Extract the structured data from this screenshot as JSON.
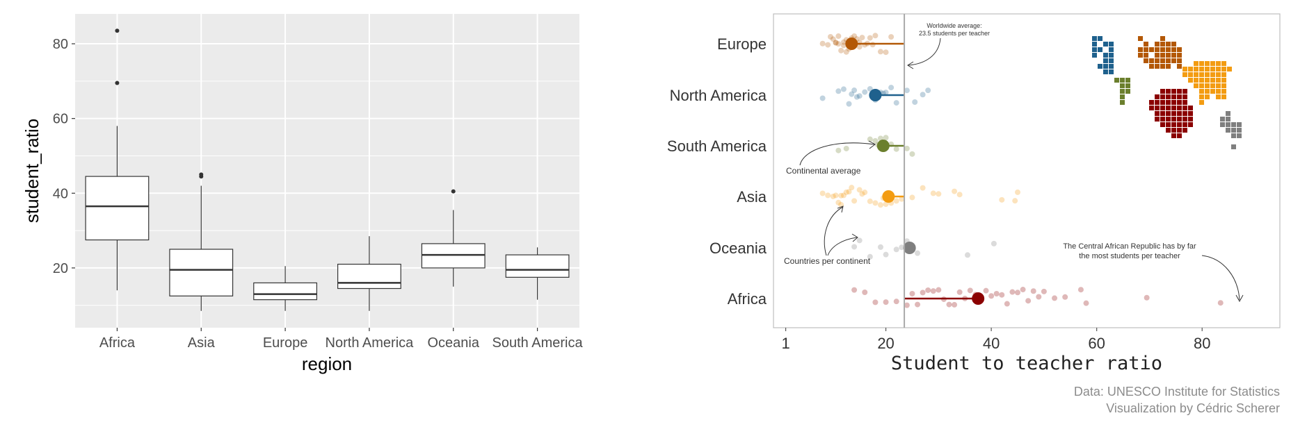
{
  "chart_data": [
    {
      "type": "box",
      "xlabel": "region",
      "ylabel": "student_ratio",
      "ylim": [
        4,
        88
      ],
      "yticks": [
        20,
        40,
        60,
        80
      ],
      "grid": true,
      "categories": [
        "Africa",
        "Asia",
        "Europe",
        "North America",
        "Oceania",
        "South America"
      ],
      "boxes": [
        {
          "category": "Africa",
          "whisker_low": 14,
          "q1": 27.5,
          "median": 36.5,
          "q3": 44.5,
          "whisker_high": 58,
          "outliers": [
            69.5,
            83.5
          ]
        },
        {
          "category": "Asia",
          "whisker_low": 8.5,
          "q1": 12.5,
          "median": 19.5,
          "q3": 25,
          "whisker_high": 42,
          "outliers": [
            44.5,
            45
          ]
        },
        {
          "category": "Europe",
          "whisker_low": 8.5,
          "q1": 11.5,
          "median": 13,
          "q3": 16,
          "whisker_high": 20.5,
          "outliers": []
        },
        {
          "category": "North America",
          "whisker_low": 8.5,
          "q1": 14.5,
          "median": 16,
          "q3": 21,
          "whisker_high": 28.5,
          "outliers": []
        },
        {
          "category": "Oceania",
          "whisker_low": 15,
          "q1": 20,
          "median": 23.5,
          "q3": 26.5,
          "whisker_high": 35.5,
          "outliers": [
            40.5
          ]
        },
        {
          "category": "South America",
          "whisker_low": 11.5,
          "q1": 17.5,
          "median": 19.5,
          "q3": 23.5,
          "whisker_high": 25.5,
          "outliers": []
        }
      ]
    },
    {
      "type": "scatter",
      "xlabel": "Student to teacher ratio",
      "xlim": [
        0,
        90
      ],
      "xticks": [
        1,
        20,
        40,
        60,
        80
      ],
      "categories": [
        "Europe",
        "North America",
        "South America",
        "Asia",
        "Oceania",
        "Africa"
      ],
      "worldwide_average": 23.5,
      "series": [
        {
          "category": "Europe",
          "color": "#b35806",
          "mean": 13.5,
          "points": [
            8,
            9,
            9.5,
            10,
            10.5,
            11,
            11,
            11.5,
            12,
            12,
            12.5,
            13,
            13.5,
            14,
            14,
            14.5,
            15,
            15.5,
            16,
            16.5,
            17,
            18,
            19,
            20,
            21,
            10.5,
            12.5,
            13.5,
            15,
            17.5
          ]
        },
        {
          "category": "North America",
          "color": "#1f618d",
          "mean": 18,
          "points": [
            8,
            11,
            12,
            13,
            13.5,
            14,
            15,
            16,
            17,
            18,
            19,
            20,
            21,
            22,
            24,
            25.5,
            27,
            28,
            14.5,
            19.5
          ]
        },
        {
          "category": "South America",
          "color": "#6b7f2d",
          "mean": 19.5,
          "points": [
            11,
            12.5,
            17,
            18,
            18.5,
            19,
            20,
            21,
            22,
            24,
            25
          ]
        },
        {
          "category": "Asia",
          "color": "#f39c12",
          "mean": 20.5,
          "points": [
            8,
            9,
            10,
            10.5,
            11,
            11.5,
            12,
            12.5,
            13,
            14,
            15,
            16,
            17,
            18,
            19,
            20,
            21,
            22,
            23,
            25,
            27,
            29,
            30,
            33,
            34,
            42,
            44.5,
            45,
            11.5,
            13.5,
            15.5,
            19.5
          ]
        },
        {
          "category": "Oceania",
          "color": "#7f7f7f",
          "mean": 24.5,
          "points": [
            14,
            15,
            17,
            19,
            20,
            22,
            23,
            24,
            26,
            35.5,
            40.5
          ]
        },
        {
          "category": "Africa",
          "color": "#8b0000",
          "mean": 37.5,
          "points": [
            14,
            16,
            18,
            20,
            22,
            24,
            25,
            26,
            27,
            28,
            29,
            30,
            31,
            32,
            33,
            34,
            35,
            36,
            37,
            38,
            39,
            40,
            41,
            42,
            43,
            44,
            45,
            46,
            47,
            48,
            49,
            50,
            52,
            54,
            57,
            58,
            69.5,
            83.5
          ]
        }
      ],
      "annotations": {
        "worldwide": "Worldwide average:\n23.5 students per teacher",
        "continental": "Continental average",
        "countries": "Countries per continent",
        "car": "The Central African Republic has by far\nthe most students per teacher"
      },
      "caption": "Data: UNESCO Institute for Statistics\nVisualization by Cédric Scherer",
      "palette": {
        "europe": "#b35806",
        "north_america": "#1f618d",
        "south_america": "#6b7f2d",
        "asia": "#f39c12",
        "oceania": "#7f7f7f",
        "africa": "#8b0000"
      }
    }
  ]
}
